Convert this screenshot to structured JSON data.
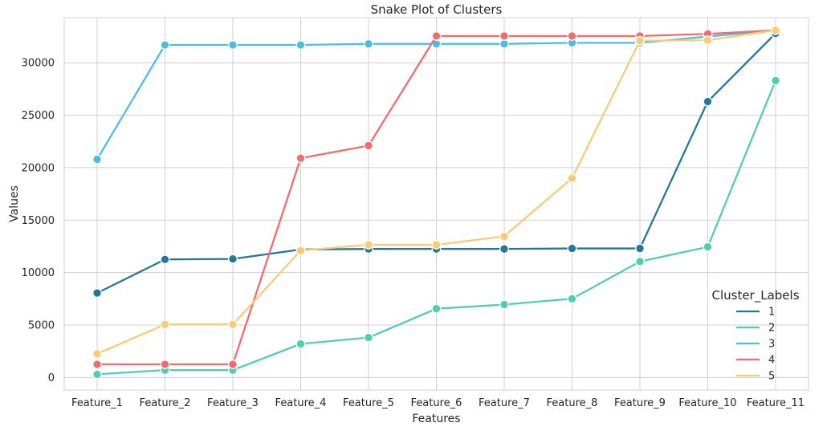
{
  "chart_data": {
    "type": "line",
    "title": "Snake Plot of Clusters",
    "xlabel": "Features",
    "ylabel": "Values",
    "categories": [
      "Feature_1",
      "Feature_2",
      "Feature_3",
      "Feature_4",
      "Feature_5",
      "Feature_6",
      "Feature_7",
      "Feature_8",
      "Feature_9",
      "Feature_10",
      "Feature_11"
    ],
    "ylim": [
      -1200,
      34300
    ],
    "yticks": [
      0,
      5000,
      10000,
      15000,
      20000,
      25000,
      30000
    ],
    "grid": true,
    "legend": {
      "title": "Cluster_Labels",
      "placement": "lower-right"
    },
    "series": [
      {
        "name": "1",
        "color": "#23789a",
        "values": [
          8050,
          11250,
          11300,
          12200,
          12250,
          12250,
          12250,
          12300,
          12300,
          26300,
          32800
        ]
      },
      {
        "name": "2",
        "color": "#4ecfad",
        "values": [
          300,
          700,
          700,
          3200,
          3800,
          6550,
          6950,
          7500,
          11050,
          12450,
          28300
        ]
      },
      {
        "name": "3",
        "color": "#4cbee0",
        "values": [
          20800,
          31700,
          31700,
          31700,
          31800,
          31800,
          31800,
          31900,
          31900,
          32500,
          33100
        ]
      },
      {
        "name": "4",
        "color": "#f26b6e",
        "values": [
          1250,
          1250,
          1250,
          20900,
          22100,
          32550,
          32550,
          32550,
          32550,
          32750,
          33100
        ]
      },
      {
        "name": "5",
        "color": "#fdca74",
        "values": [
          2250,
          5050,
          5050,
          12100,
          12650,
          12650,
          13450,
          19000,
          32100,
          32150,
          33100
        ]
      }
    ]
  }
}
